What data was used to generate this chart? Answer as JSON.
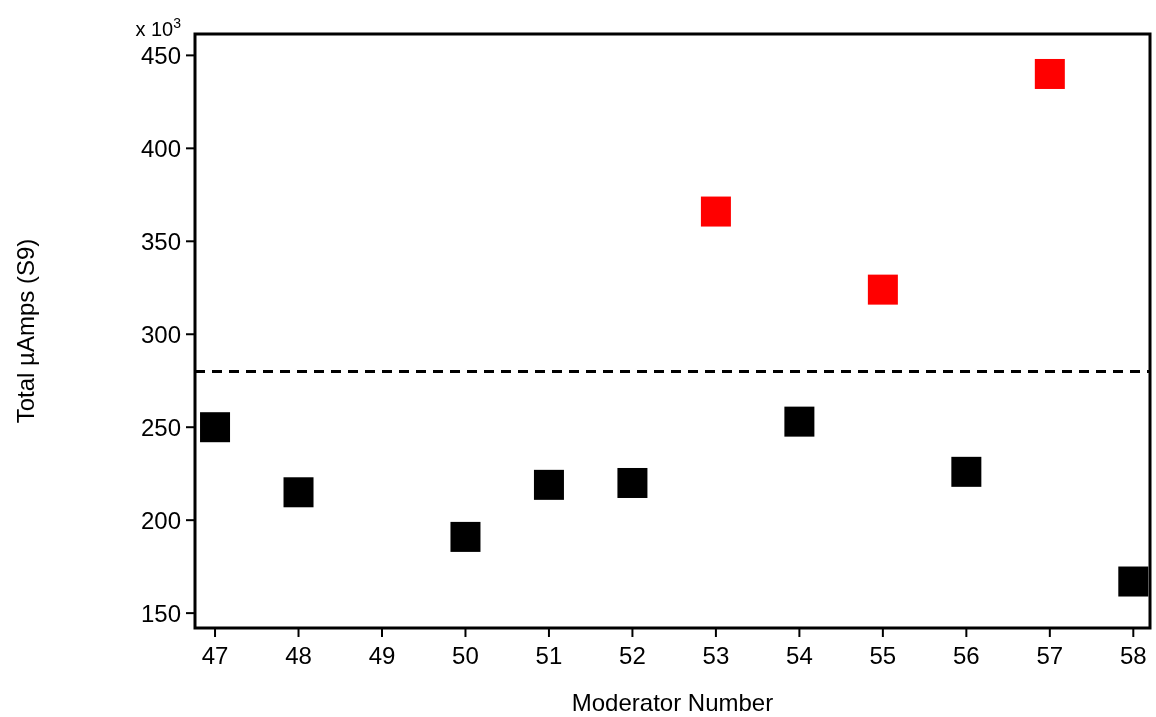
{
  "chart_data": {
    "type": "scatter",
    "xlabel": "Moderator Number",
    "ylabel": "Total µAmps (S9)",
    "xlim": [
      46.76,
      58.2
    ],
    "xticks": [
      47,
      48,
      49,
      50,
      51,
      52,
      53,
      54,
      55,
      56,
      57,
      58
    ],
    "ylim": [
      142,
      461.5
    ],
    "yticks": [
      150,
      200,
      250,
      300,
      350,
      400,
      450
    ],
    "annotations": [
      "x 10$^{3}$"
    ],
    "marker": "square",
    "series": [
      {
        "color": "#000000",
        "x": [
          47,
          48,
          50,
          51,
          52,
          54,
          56,
          58
        ],
        "values": [
          250,
          215,
          191,
          219,
          220,
          253,
          226,
          167
        ]
      },
      {
        "color": "#ff0000",
        "x": [
          53,
          55,
          57
        ],
        "values": [
          366,
          324,
          440
        ]
      }
    ],
    "ref_lines": [
      {
        "axis": "y",
        "value": 280,
        "color": "#000000",
        "line_style": "dashed"
      }
    ]
  }
}
